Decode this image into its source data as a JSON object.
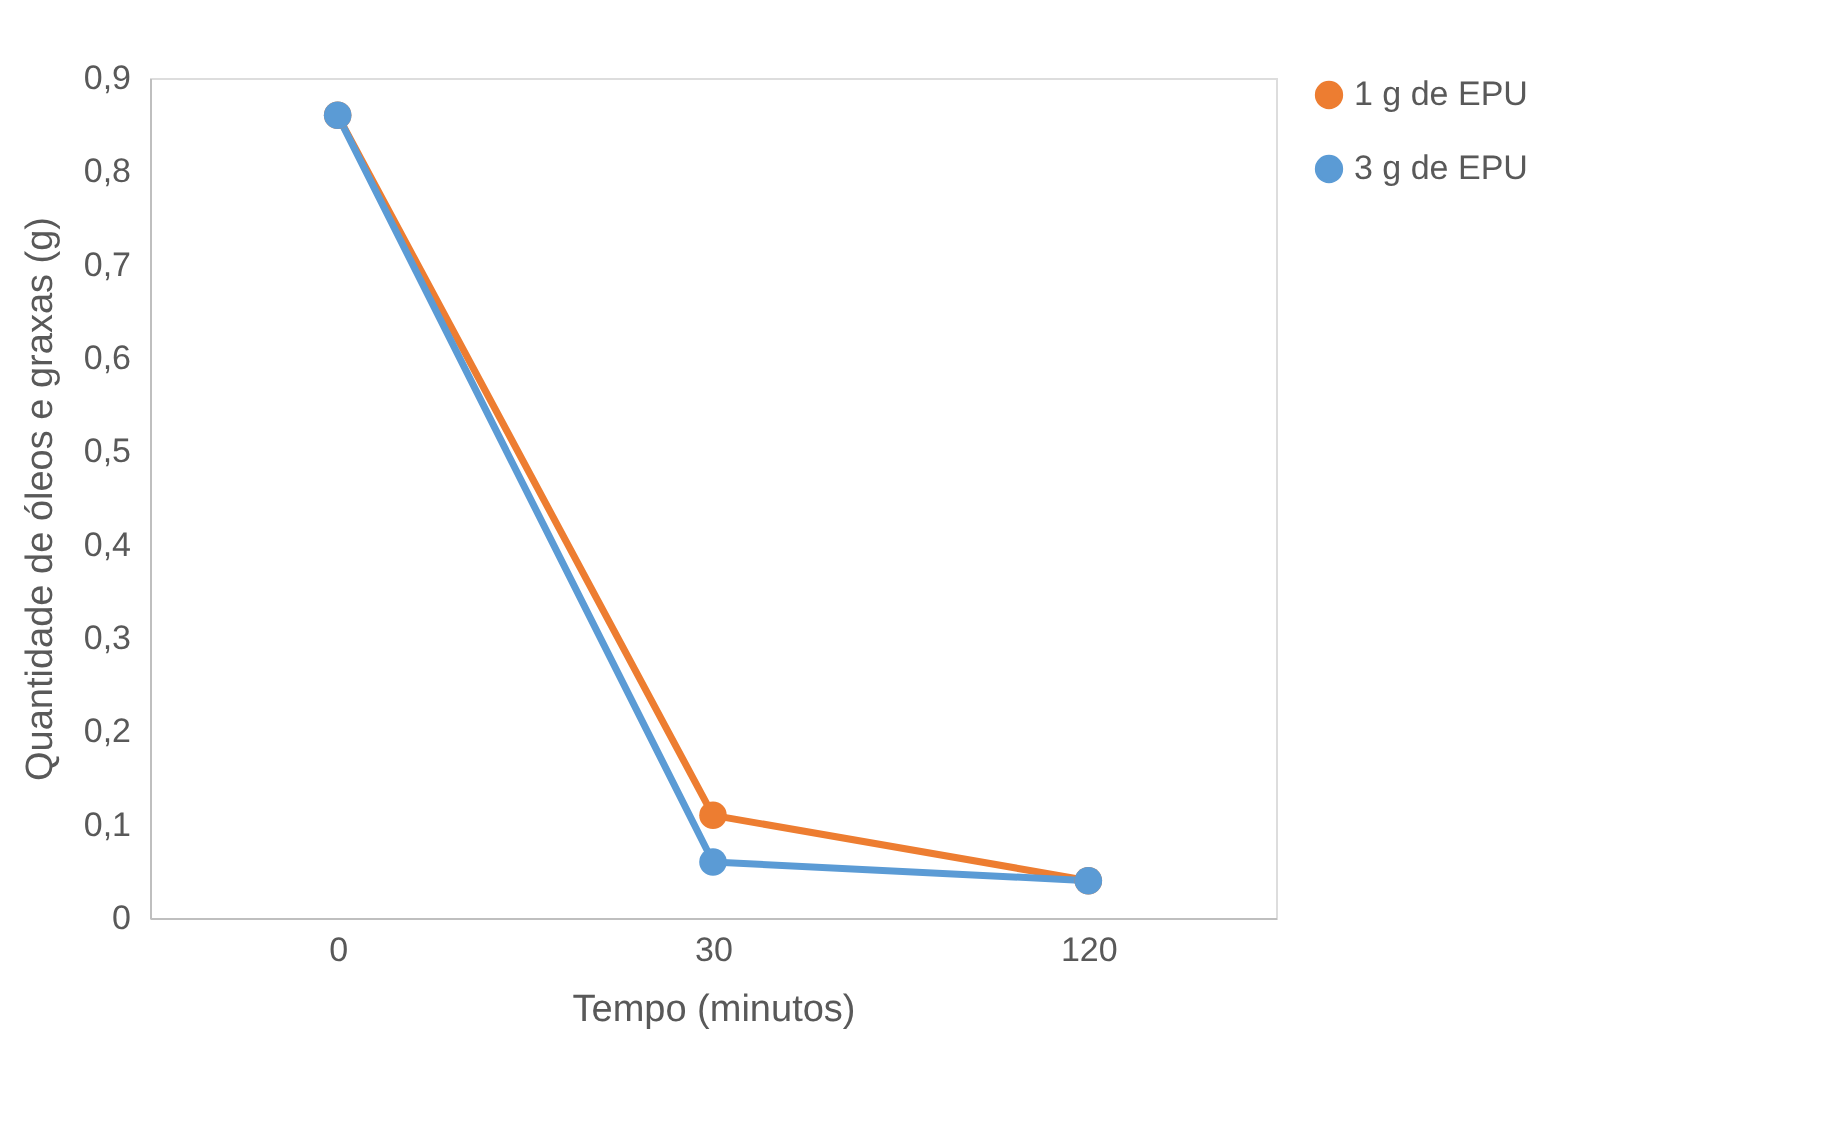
{
  "chart_data": {
    "type": "line",
    "xlabel": "Tempo (minutos)",
    "ylabel": "Quantidade de óleos e graxas (g)",
    "categories": [
      "0",
      "30",
      "120"
    ],
    "series": [
      {
        "name": "1 g de EPU",
        "color": "#ed7d31",
        "values": [
          0.86,
          0.11,
          0.04
        ]
      },
      {
        "name": "3 g de EPU",
        "color": "#5b9bd5",
        "values": [
          0.86,
          0.06,
          0.04
        ]
      }
    ],
    "ylim": [
      0,
      0.9
    ],
    "yticks": [
      {
        "value": 0,
        "label": "0"
      },
      {
        "value": 0.1,
        "label": "0,1"
      },
      {
        "value": 0.2,
        "label": "0,2"
      },
      {
        "value": 0.3,
        "label": "0,3"
      },
      {
        "value": 0.4,
        "label": "0,4"
      },
      {
        "value": 0.5,
        "label": "0,5"
      },
      {
        "value": 0.6,
        "label": "0,6"
      },
      {
        "value": 0.7,
        "label": "0,7"
      },
      {
        "value": 0.8,
        "label": "0,8"
      },
      {
        "value": 0.9,
        "label": "0,9"
      }
    ],
    "grid": false,
    "legend": "right",
    "marker": "circle",
    "line_style": "solid"
  }
}
